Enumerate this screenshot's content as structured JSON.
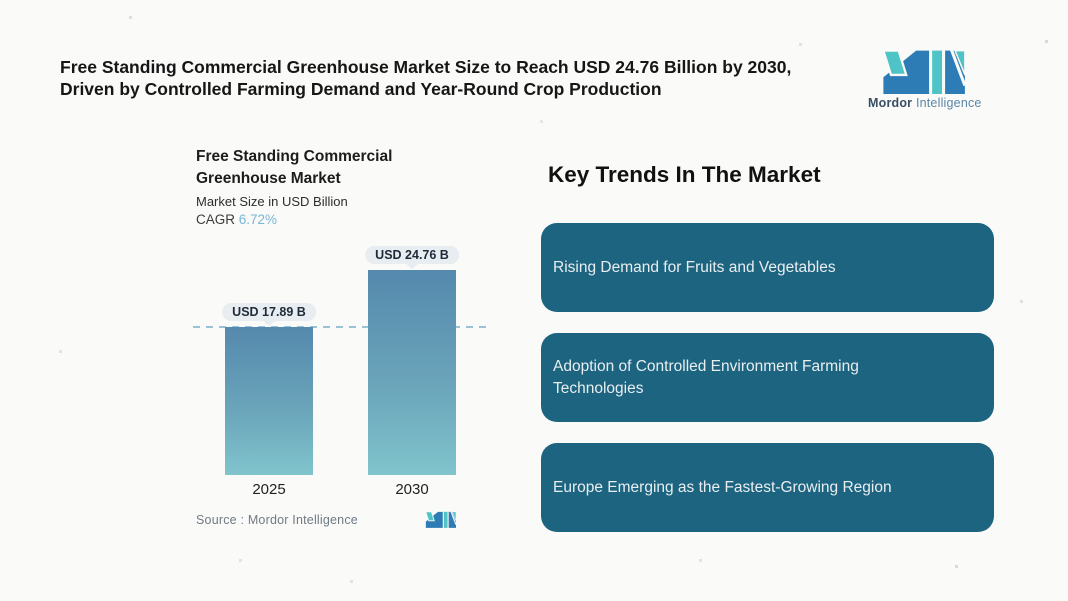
{
  "page": {
    "title_line1": "Free Standing Commercial Greenhouse Market Size to Reach USD 24.76 Billion by 2030,",
    "title_line2": "Driven by Controlled Farming Demand and Year-Round Crop Production"
  },
  "brand": {
    "name_bold": "Mordor",
    "name_regular": "Intelligence",
    "logo_colors": {
      "blue": "#2e7cb5",
      "teal": "#4fc4c6"
    }
  },
  "chart": {
    "title_line1": "Free Standing Commercial",
    "title_line2": "Greenhouse Market",
    "subtitle": "Market Size in USD Billion",
    "cagr_label": "CAGR ",
    "cagr_value": "6.72%",
    "source": "Source :  Mordor Intelligence"
  },
  "chart_data": {
    "type": "bar",
    "title": "Free Standing Commercial Greenhouse Market",
    "subtitle": "Market Size in USD Billion",
    "unit": "USD Billion",
    "cagr": "6.72%",
    "categories": [
      "2025",
      "2030"
    ],
    "values": [
      17.89,
      24.76
    ],
    "value_labels": [
      "USD 17.89 B",
      "USD 24.76 B"
    ],
    "reference_line": 17.89,
    "ylim": [
      0,
      26
    ],
    "grid": false,
    "legend": false,
    "bar_gradient_top": "#5589ad",
    "bar_gradient_bottom": "#80c4cc",
    "reference_line_color": "#9ac2d6"
  },
  "trends": {
    "heading": "Key Trends In The Market",
    "card_color": "#1d6480",
    "items": [
      "Rising Demand for Fruits and Vegetables",
      "Adoption of Controlled Environment Farming Technologies",
      "Europe Emerging as the Fastest-Growing Region"
    ]
  }
}
